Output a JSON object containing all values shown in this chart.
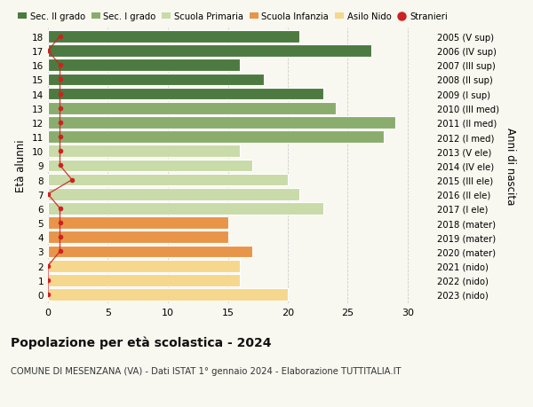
{
  "title": "Popolazione per età scolastica - 2024",
  "subtitle": "COMUNE DI MESENZANA (VA) - Dati ISTAT 1° gennaio 2024 - Elaborazione TUTTITALIA.IT",
  "ylabel": "Età alunni",
  "right_label": "Anni di nascita",
  "ages": [
    0,
    1,
    2,
    3,
    4,
    5,
    6,
    7,
    8,
    9,
    10,
    11,
    12,
    13,
    14,
    15,
    16,
    17,
    18
  ],
  "bar_values": [
    20,
    16,
    16,
    17,
    15,
    15,
    23,
    21,
    20,
    17,
    16,
    28,
    29,
    24,
    23,
    18,
    16,
    27,
    21
  ],
  "stranieri": [
    0,
    0,
    0,
    1,
    1,
    1,
    1,
    0,
    2,
    1,
    1,
    1,
    1,
    1,
    1,
    1,
    1,
    0,
    1
  ],
  "right_labels": [
    "2023 (nido)",
    "2022 (nido)",
    "2021 (nido)",
    "2020 (mater)",
    "2019 (mater)",
    "2018 (mater)",
    "2017 (I ele)",
    "2016 (II ele)",
    "2015 (III ele)",
    "2014 (IV ele)",
    "2013 (V ele)",
    "2012 (I med)",
    "2011 (II med)",
    "2010 (III med)",
    "2009 (I sup)",
    "2008 (II sup)",
    "2007 (III sup)",
    "2006 (IV sup)",
    "2005 (V sup)"
  ],
  "bar_colors": [
    "#f5d78e",
    "#f5d78e",
    "#f5d78e",
    "#e8954a",
    "#e8954a",
    "#e8954a",
    "#c8dba8",
    "#c8dba8",
    "#c8dba8",
    "#c8dba8",
    "#c8dba8",
    "#8aad6e",
    "#8aad6e",
    "#8aad6e",
    "#4d7a40",
    "#4d7a40",
    "#4d7a40",
    "#4d7a40",
    "#4d7a40"
  ],
  "legend_labels": [
    "Sec. II grado",
    "Sec. I grado",
    "Scuola Primaria",
    "Scuola Infanzia",
    "Asilo Nido",
    "Stranieri"
  ],
  "legend_colors": [
    "#4d7a40",
    "#8aad6e",
    "#c8dba8",
    "#e8954a",
    "#f5d78e",
    "#cc2222"
  ],
  "xticks": [
    0,
    5,
    10,
    15,
    20,
    25,
    30
  ],
  "xlim": [
    0,
    32
  ],
  "background_color": "#f8f8f0",
  "plot_bg": "#f8f8f0",
  "grid_color": "#cccccc"
}
